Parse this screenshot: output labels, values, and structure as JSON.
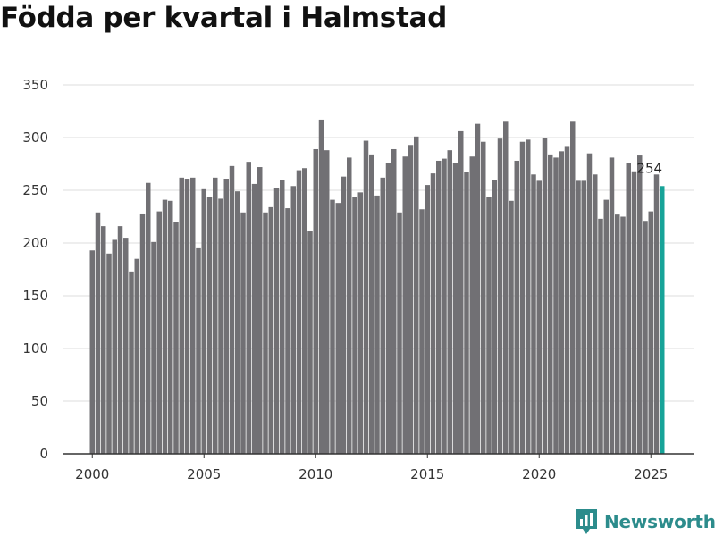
{
  "title": "Födda per kvartal i Halmstad",
  "brand": {
    "name": "Newsworthy",
    "icon": "newsworthy-logo-icon"
  },
  "colors": {
    "bar": "#717074",
    "highlight": "#17a398",
    "grid": "#dddddd",
    "axis": "#333333"
  },
  "chart_data": {
    "type": "bar",
    "title": "Födda per kvartal i Halmstad",
    "xlabel": "",
    "ylabel": "",
    "ylim": [
      0,
      350
    ],
    "yticks": [
      "0",
      "50",
      "100",
      "150",
      "200",
      "250",
      "300",
      "350"
    ],
    "xticks": [
      {
        "label": "2000",
        "index": 0
      },
      {
        "label": "2005",
        "index": 20
      },
      {
        "label": "2010",
        "index": 40
      },
      {
        "label": "2015",
        "index": 60
      },
      {
        "label": "2020",
        "index": 80
      },
      {
        "label": "2025",
        "index": 100
      }
    ],
    "series": [
      {
        "name": "Födda",
        "start": "2000 Q1",
        "values": [
          193,
          229,
          216,
          190,
          203,
          216,
          205,
          173,
          185,
          228,
          257,
          201,
          230,
          241,
          240,
          220,
          262,
          261,
          262,
          195,
          251,
          244,
          262,
          242,
          261,
          273,
          249,
          229,
          277,
          256,
          272,
          229,
          234,
          252,
          260,
          233,
          254,
          269,
          271,
          211,
          289,
          317,
          288,
          241,
          238,
          263,
          281,
          244,
          248,
          297,
          284,
          245,
          262,
          276,
          289,
          229,
          282,
          293,
          301,
          232,
          255,
          266,
          278,
          280,
          288,
          276,
          306,
          267,
          282,
          313,
          296,
          244,
          260,
          299,
          315,
          240,
          278,
          296,
          298,
          265,
          259,
          300,
          284,
          281,
          287,
          292,
          315,
          259,
          259,
          285,
          265,
          223,
          241,
          281,
          227,
          225,
          276,
          268,
          283,
          221,
          230,
          265,
          254
        ]
      }
    ],
    "highlight": {
      "index": 102,
      "label": "254"
    }
  }
}
